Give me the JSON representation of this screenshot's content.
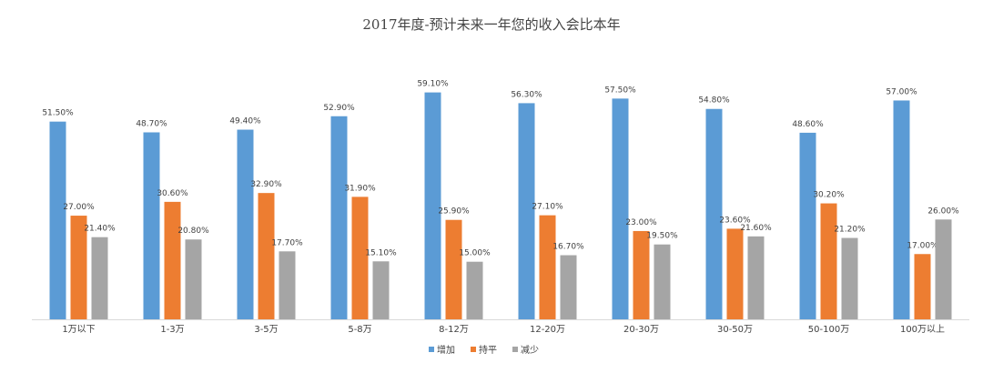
{
  "chart_data": {
    "type": "bar",
    "title": "2017年度-预计未来一年您的收入会比本年",
    "xlabel": "",
    "ylabel": "",
    "ylim": [
      0,
      65
    ],
    "grid": false,
    "legend_position": "bottom",
    "categories": [
      "1万以下",
      "1-3万",
      "3-5万",
      "5-8万",
      "8-12万",
      "12-20万",
      "20-30万",
      "30-50万",
      "50-100万",
      "100万以上"
    ],
    "series": [
      {
        "name": "增加",
        "color": "#5B9BD5",
        "values": [
          51.5,
          48.7,
          49.4,
          52.9,
          59.1,
          56.3,
          57.5,
          54.8,
          48.6,
          57.0
        ],
        "labels": [
          "51.50%",
          "48.70%",
          "49.40%",
          "52.90%",
          "59.10%",
          "56.30%",
          "57.50%",
          "54.80%",
          "48.60%",
          "57.00%"
        ]
      },
      {
        "name": "持平",
        "color": "#ED7D31",
        "values": [
          27.0,
          30.6,
          32.9,
          31.9,
          25.9,
          27.1,
          23.0,
          23.6,
          30.2,
          17.0
        ],
        "labels": [
          "27.00%",
          "30.60%",
          "32.90%",
          "31.90%",
          "25.90%",
          "27.10%",
          "23.00%",
          "23.60%",
          "30.20%",
          "17.00%"
        ]
      },
      {
        "name": "减少",
        "color": "#A5A5A5",
        "values": [
          21.4,
          20.8,
          17.7,
          15.1,
          15.0,
          16.7,
          19.5,
          21.6,
          21.2,
          26.0
        ],
        "labels": [
          "21.40%",
          "20.80%",
          "17.70%",
          "15.10%",
          "15.00%",
          "16.70%",
          "19.50%",
          "21.60%",
          "21.20%",
          "26.00%"
        ]
      }
    ]
  }
}
